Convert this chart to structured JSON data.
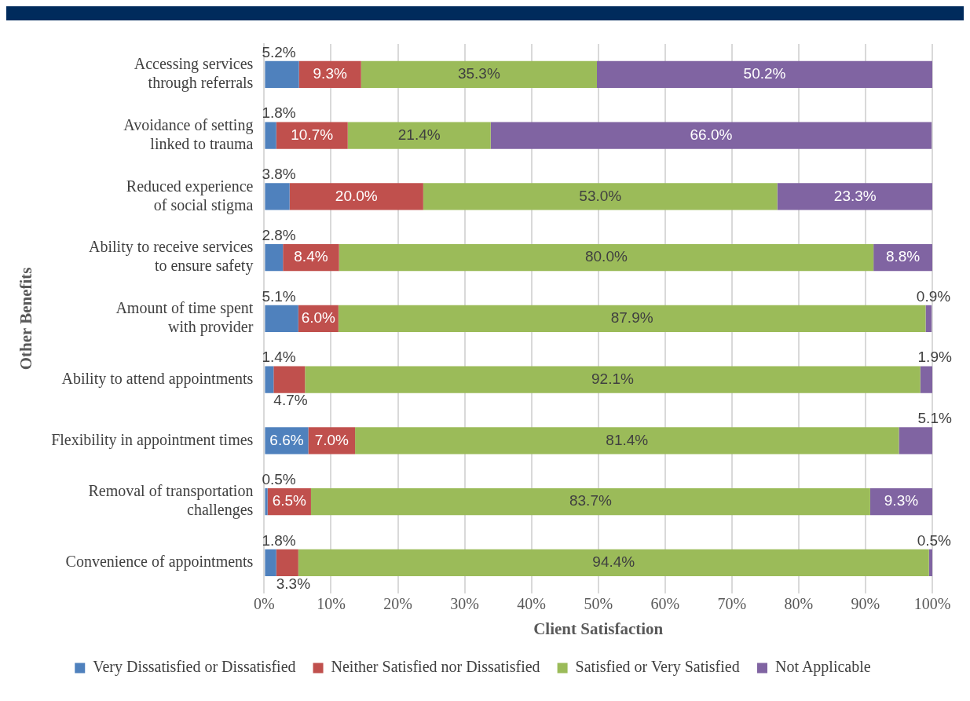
{
  "chart_data": {
    "type": "bar",
    "orientation": "horizontal",
    "stacked": true,
    "xlabel": "Client Satisfaction",
    "ylabel": "Other Benefits",
    "categories": [
      "Accessing services through referrals",
      "Avoidance of setting linked to trauma",
      "Reduced experience of social stigma",
      "Ability to receive services to ensure safety",
      "Amount of time spent with provider",
      "Ability to attend appointments",
      "Flexibility in appointment times",
      "Removal of transportation challenges",
      "Convenience of appointments"
    ],
    "series": [
      {
        "name": "Very Dissatisfied or Dissatisfied",
        "color": "#4f81bd",
        "values": [
          5.2,
          1.8,
          3.8,
          2.8,
          5.1,
          1.4,
          6.6,
          0.5,
          1.8
        ],
        "value_labels": [
          "5.2%",
          "1.8%",
          "3.8%",
          "2.8%",
          "5.1%",
          "1.4%",
          "6.6%",
          "0.5%",
          "1.8%"
        ]
      },
      {
        "name": "Neither Satisfied nor Dissatisfied",
        "color": "#c0504d",
        "values": [
          9.3,
          10.7,
          20.0,
          8.4,
          6.0,
          4.7,
          7.0,
          6.5,
          3.3
        ],
        "value_labels": [
          "9.3%",
          "10.7%",
          "20.0%",
          "8.4%",
          "6.0%",
          "4.7%",
          "7.0%",
          "6.5%",
          "3.3%"
        ]
      },
      {
        "name": "Satisfied or Very Satisfied",
        "color": "#9bbb59",
        "values": [
          35.3,
          21.4,
          53.0,
          80.0,
          87.9,
          92.1,
          81.4,
          83.7,
          94.4
        ],
        "value_labels": [
          "35.3%",
          "21.4%",
          "53.0%",
          "80.0%",
          "87.9%",
          "92.1%",
          "81.4%",
          "83.7%",
          "94.4%"
        ]
      },
      {
        "name": "Not Applicable",
        "color": "#8064a2",
        "values": [
          50.2,
          66.0,
          23.3,
          8.8,
          0.9,
          1.9,
          5.1,
          9.3,
          0.5
        ],
        "value_labels": [
          "50.2%",
          "66.0%",
          "23.3%",
          "8.8%",
          "0.9%",
          "1.9%",
          "5.1%",
          "9.3%",
          "0.5%"
        ]
      }
    ],
    "xlim": [
      0,
      100
    ],
    "xticks": [
      {
        "value": 0,
        "label": "0%"
      },
      {
        "value": 10,
        "label": "10%"
      },
      {
        "value": 20,
        "label": "20%"
      },
      {
        "value": 30,
        "label": "30%"
      },
      {
        "value": 40,
        "label": "40%"
      },
      {
        "value": 50,
        "label": "50%"
      },
      {
        "value": 60,
        "label": "60%"
      },
      {
        "value": 70,
        "label": "70%"
      },
      {
        "value": 80,
        "label": "80%"
      },
      {
        "value": 90,
        "label": "90%"
      },
      {
        "value": 100,
        "label": "100%"
      }
    ],
    "grid": "x",
    "legend": "bottom"
  }
}
